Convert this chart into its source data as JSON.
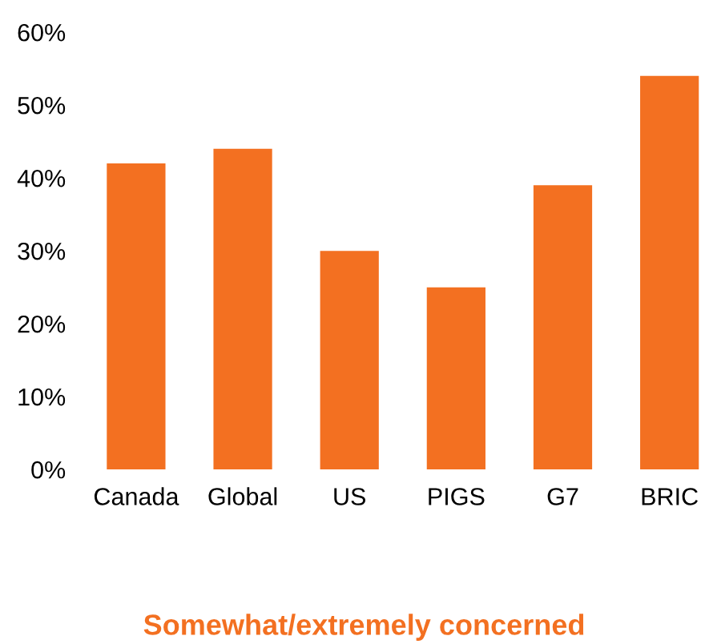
{
  "chart_data": {
    "type": "bar",
    "xlabel": "Somewhat/extremely concerned",
    "categories": [
      "Canada",
      "Global",
      "US",
      "PIGS",
      "G7",
      "BRIC"
    ],
    "values": [
      42,
      44,
      30,
      25,
      39,
      54
    ],
    "color": "#f37021",
    "ylim": [
      0,
      60
    ],
    "yticks": [
      {
        "value": 0,
        "label": "0%"
      },
      {
        "value": 10,
        "label": "10%"
      },
      {
        "value": 20,
        "label": "20%"
      },
      {
        "value": 30,
        "label": "30%"
      },
      {
        "value": 40,
        "label": "40%"
      },
      {
        "value": 50,
        "label": "50%"
      },
      {
        "value": 60,
        "label": "60%"
      }
    ],
    "grid": false,
    "legend": false
  }
}
